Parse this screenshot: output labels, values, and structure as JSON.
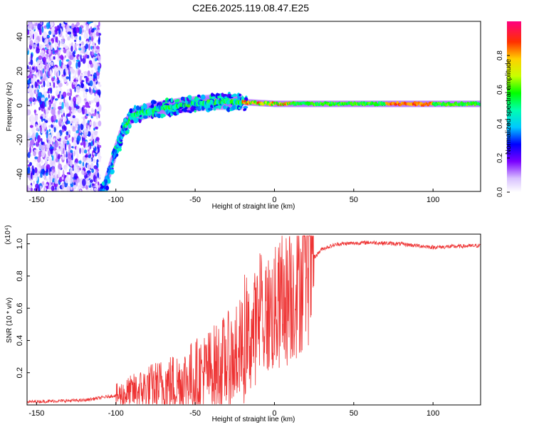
{
  "title": "C2E6.2025.119.08.47.E25",
  "chart_data": [
    {
      "type": "heatmap",
      "xlabel": "Height of straight line (km)",
      "ylabel": "Frequency (Hz)",
      "xlim": [
        -156,
        130
      ],
      "ylim": [
        -50,
        49
      ],
      "xticks": [
        "-150",
        "-100",
        "-50",
        "0",
        "50",
        "100"
      ],
      "yticks": [
        "-40",
        "-20",
        "0",
        "20",
        "40"
      ],
      "colorbar": {
        "label": "Normalized spectral amplitude",
        "range": [
          0,
          1
        ],
        "ticks": [
          "0.0",
          "0.2",
          "0.4",
          "0.6",
          "0.8"
        ]
      },
      "ridge": [
        {
          "x": -108,
          "y": -50
        },
        {
          "x": -103,
          "y": -35
        },
        {
          "x": -100,
          "y": -26
        },
        {
          "x": -96,
          "y": -15
        },
        {
          "x": -90,
          "y": -6
        },
        {
          "x": -80,
          "y": -3
        },
        {
          "x": -60,
          "y": 0
        },
        {
          "x": -40,
          "y": 2
        },
        {
          "x": -20,
          "y": 2
        },
        {
          "x": 0,
          "y": 1
        },
        {
          "x": 20,
          "y": 1
        },
        {
          "x": 60,
          "y": 1
        },
        {
          "x": 100,
          "y": 1
        },
        {
          "x": 130,
          "y": 1
        }
      ]
    },
    {
      "type": "line",
      "xlabel": "Height of straight line (km)",
      "ylabel": "SNR (10 * v/v)",
      "scale_label": "(x10⁴)",
      "xlim": [
        -156,
        130
      ],
      "ylim": [
        0,
        1.06
      ],
      "xticks": [
        "-150",
        "-100",
        "-50",
        "0",
        "50",
        "100"
      ],
      "yticks": [
        "0.2",
        "0.4",
        "0.6",
        "0.8",
        "1.0"
      ],
      "color": "#ee3333",
      "trend": [
        {
          "x": -156,
          "y": 0.02
        },
        {
          "x": -120,
          "y": 0.03
        },
        {
          "x": -100,
          "y": 0.06
        },
        {
          "x": -80,
          "y": 0.12
        },
        {
          "x": -60,
          "y": 0.16
        },
        {
          "x": -40,
          "y": 0.24
        },
        {
          "x": -20,
          "y": 0.36
        },
        {
          "x": -10,
          "y": 0.56
        },
        {
          "x": 0,
          "y": 0.62
        },
        {
          "x": 10,
          "y": 0.72
        },
        {
          "x": 20,
          "y": 0.86
        },
        {
          "x": 30,
          "y": 0.97
        },
        {
          "x": 40,
          "y": 1.0
        },
        {
          "x": 60,
          "y": 1.01
        },
        {
          "x": 80,
          "y": 1.0
        },
        {
          "x": 100,
          "y": 0.98
        },
        {
          "x": 130,
          "y": 0.99
        }
      ]
    }
  ]
}
